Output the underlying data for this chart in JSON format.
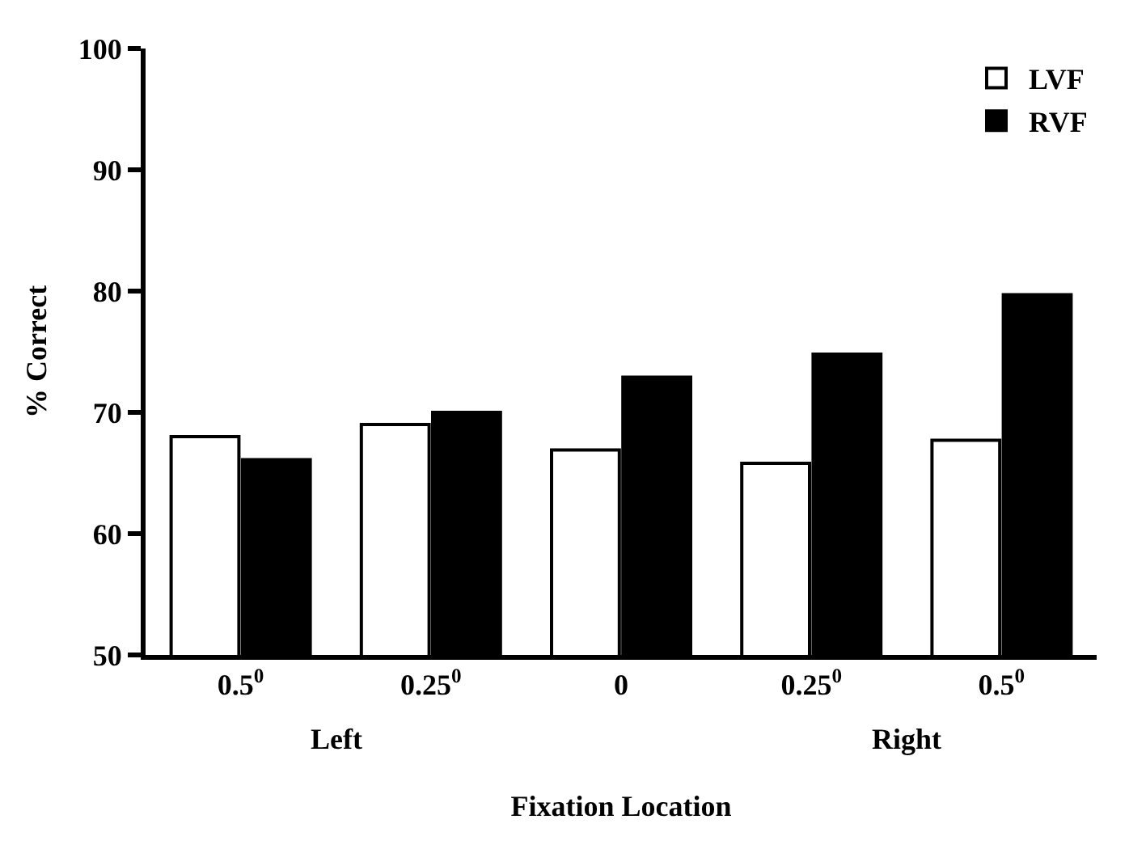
{
  "chart_data": {
    "type": "bar",
    "xlabel": "Fixation Location",
    "ylabel": "% Correct",
    "categories": [
      "0.5$^{0}$",
      "0.25$^{0}$",
      "0",
      "0.25$^{0}$",
      "0.5$^{0}$"
    ],
    "series": [
      {
        "name": "LVF",
        "color": "#ffffff",
        "values": [
          68,
          69,
          66.9,
          65.8,
          67.7
        ]
      },
      {
        "name": "RVF",
        "color": "#000000",
        "values": [
          66.1,
          70,
          72.9,
          74.8,
          79.7
        ]
      }
    ],
    "ylim": [
      50,
      100
    ],
    "yticks": [
      50,
      60,
      70,
      80,
      90,
      100
    ],
    "legend": "top right",
    "annotations": [
      "Left",
      "Right"
    ]
  }
}
